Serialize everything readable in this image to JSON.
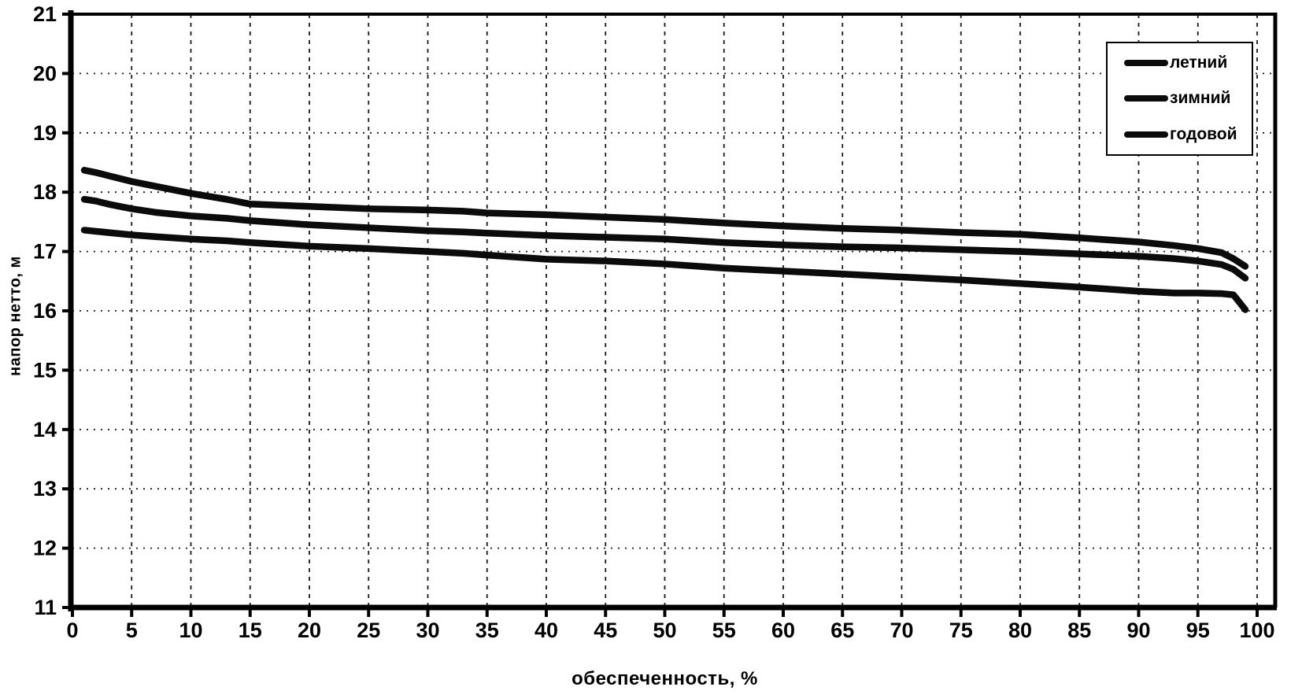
{
  "chart_data": {
    "type": "line",
    "title": "",
    "xlabel": "обеспеченность, %",
    "ylabel": "напор нетто, м",
    "xlim": [
      0,
      101.7
    ],
    "ylim": [
      11,
      21
    ],
    "xticks": [
      0,
      5,
      10,
      15,
      20,
      25,
      30,
      35,
      40,
      45,
      50,
      55,
      60,
      65,
      70,
      75,
      80,
      85,
      90,
      95,
      100
    ],
    "yticks": [
      11,
      12,
      13,
      14,
      15,
      16,
      17,
      18,
      19,
      20,
      21
    ],
    "grid": {
      "vertical": "dashed",
      "horizontal": "dotted",
      "visible": true
    },
    "line_color": "#0b0b0b",
    "axis_color": "#000000",
    "background_color": "#ffffff",
    "legend_position": "top-right",
    "x": [
      1,
      2,
      3,
      5,
      7,
      10,
      13,
      15,
      20,
      25,
      30,
      33,
      35,
      40,
      45,
      50,
      55,
      60,
      65,
      70,
      75,
      80,
      85,
      90,
      93,
      95,
      97,
      98,
      99
    ],
    "series": [
      {
        "name": "летний",
        "values": [
          18.37,
          18.33,
          18.28,
          18.18,
          18.1,
          17.98,
          17.88,
          17.8,
          17.76,
          17.72,
          17.7,
          17.68,
          17.65,
          17.62,
          17.58,
          17.54,
          17.48,
          17.43,
          17.39,
          17.36,
          17.32,
          17.29,
          17.23,
          17.16,
          17.1,
          17.05,
          16.98,
          16.88,
          16.75
        ]
      },
      {
        "name": "зимний",
        "values": [
          17.88,
          17.85,
          17.8,
          17.72,
          17.66,
          17.6,
          17.56,
          17.52,
          17.45,
          17.4,
          17.35,
          17.33,
          17.31,
          17.27,
          17.24,
          17.21,
          17.15,
          17.11,
          17.08,
          17.06,
          17.03,
          17.0,
          16.96,
          16.92,
          16.88,
          16.84,
          16.78,
          16.7,
          16.55
        ]
      },
      {
        "name": "годовой",
        "values": [
          17.36,
          17.34,
          17.32,
          17.28,
          17.25,
          17.21,
          17.18,
          17.15,
          17.09,
          17.05,
          17.0,
          16.97,
          16.94,
          16.87,
          16.84,
          16.79,
          16.72,
          16.67,
          16.62,
          16.57,
          16.52,
          16.46,
          16.4,
          16.33,
          16.3,
          16.3,
          16.29,
          16.27,
          16.02
        ]
      }
    ]
  }
}
